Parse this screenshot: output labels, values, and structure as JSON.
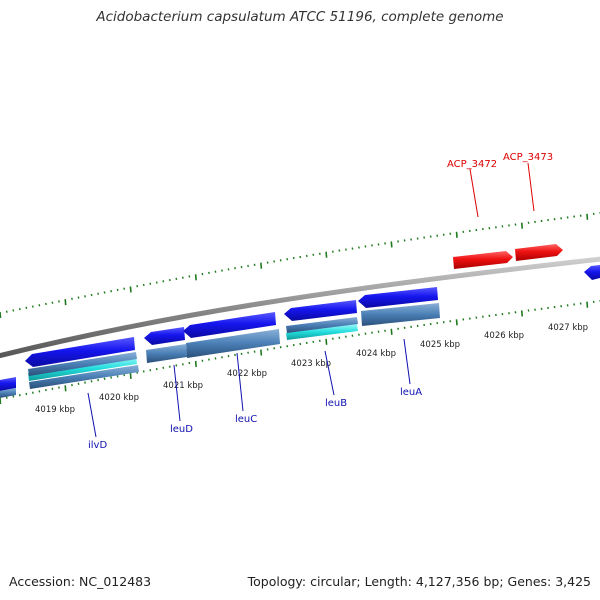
{
  "title": "Acidobacterium capsulatum ATCC 51196, complete genome",
  "accession_text": "Accession: NC_012483",
  "summary_text": "Topology: circular; Length: 4,127,356 bp; Genes: 3,425",
  "tick_labels": [
    "4019 kbp",
    "4020 kbp",
    "4021 kbp",
    "4022 kbp",
    "4023 kbp",
    "4024 kbp",
    "4025 kbp",
    "4026 kbp",
    "4027 kbp"
  ],
  "colors": {
    "backbone": "#8a8a8a",
    "cds_blue": "#1010e8",
    "cds_red": "#ee1111",
    "cds_cyan": "#22dddd",
    "feature_steel": "#4a7fb5",
    "ticks": "#1f7a1f",
    "label_blue": "#1010b0",
    "label_red": "#dd0000"
  },
  "gene_labels": [
    {
      "text": "ilvD",
      "color": "blue"
    },
    {
      "text": "leuD",
      "color": "blue"
    },
    {
      "text": "leuC",
      "color": "blue"
    },
    {
      "text": "leuB",
      "color": "blue"
    },
    {
      "text": "leuA",
      "color": "blue"
    },
    {
      "text": "ACP_3472",
      "color": "red"
    },
    {
      "text": "ACP_3473",
      "color": "red"
    }
  ]
}
